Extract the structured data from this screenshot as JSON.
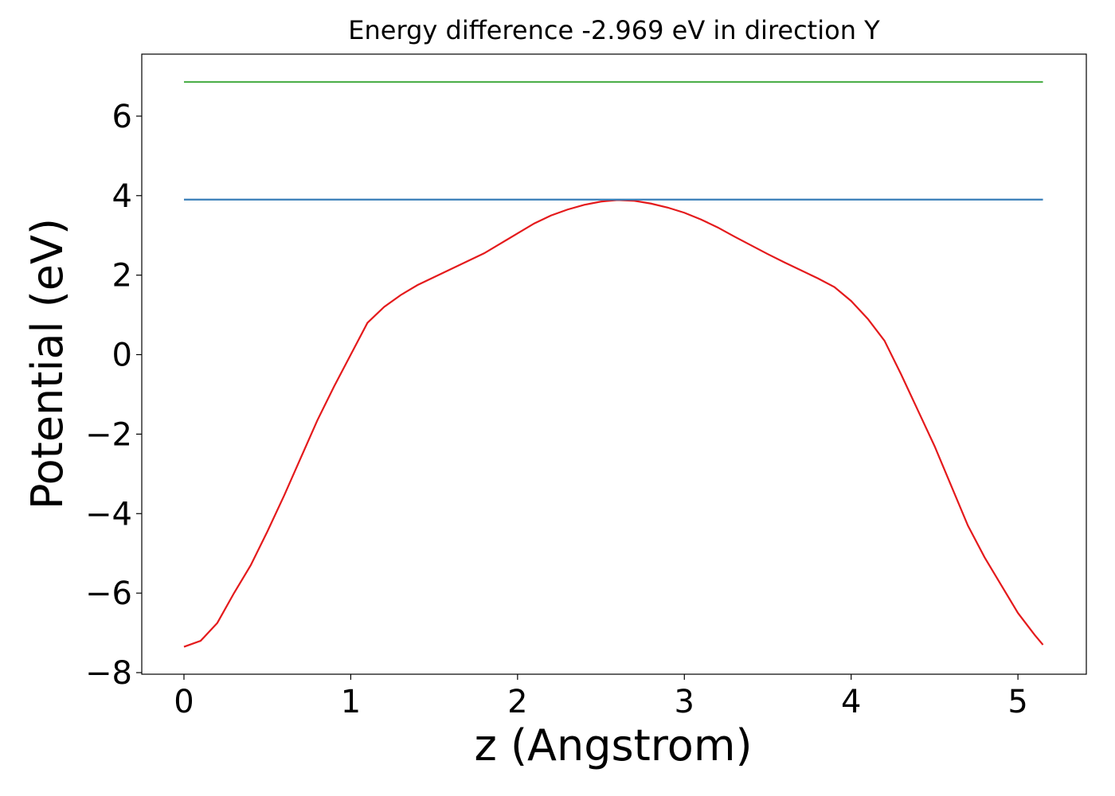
{
  "chart_data": {
    "type": "line",
    "title": "Energy difference -2.969 eV in direction Y",
    "x_label": "z (Angstrom)",
    "y_label": "Potential (eV)",
    "xlim": [
      -0.253,
      5.41
    ],
    "ylim": [
      -8.04,
      7.56
    ],
    "xticks": [
      0,
      1,
      2,
      3,
      4,
      5
    ],
    "yticks": [
      {
        "value": -8,
        "label": "−8"
      },
      {
        "value": -6,
        "label": "−6"
      },
      {
        "value": -4,
        "label": "−4"
      },
      {
        "value": -2,
        "label": "−2"
      },
      0,
      2,
      4,
      6
    ],
    "x": [
      0,
      0.1,
      0.2,
      0.3,
      0.4,
      0.5,
      0.6,
      0.7,
      0.8,
      0.9,
      1.0,
      1.1,
      1.2,
      1.3,
      1.4,
      1.5,
      1.6,
      1.7,
      1.8,
      1.9,
      2.0,
      2.1,
      2.2,
      2.3,
      2.4,
      2.5,
      2.6,
      2.7,
      2.8,
      2.9,
      3.0,
      3.1,
      3.2,
      3.3,
      3.4,
      3.5,
      3.6,
      3.7,
      3.8,
      3.9,
      4.0,
      4.1,
      4.2,
      4.3,
      4.4,
      4.5,
      4.6,
      4.7,
      4.8,
      4.9,
      5.0,
      5.1,
      5.15
    ],
    "series": [
      {
        "color": "#e41a1c",
        "values": [
          -7.35,
          -7.2,
          -6.75,
          -6.0,
          -5.3,
          -4.45,
          -3.55,
          -2.6,
          -1.65,
          -0.8,
          0.0,
          0.8,
          1.2,
          1.5,
          1.75,
          1.95,
          2.15,
          2.35,
          2.55,
          2.8,
          3.05,
          3.3,
          3.5,
          3.65,
          3.77,
          3.85,
          3.89,
          3.87,
          3.8,
          3.7,
          3.57,
          3.4,
          3.2,
          2.97,
          2.75,
          2.53,
          2.32,
          2.12,
          1.92,
          1.7,
          1.35,
          0.9,
          0.35,
          -0.5,
          -1.4,
          -2.3,
          -3.3,
          -4.3,
          -5.1,
          -5.8,
          -6.5,
          -7.05,
          -7.3
        ]
      },
      {
        "color": "#377eb8",
        "values": [
          3.9,
          3.9,
          3.9,
          3.9,
          3.9,
          3.9,
          3.9,
          3.9,
          3.9,
          3.9,
          3.9,
          3.9,
          3.9,
          3.9,
          3.9,
          3.9,
          3.9,
          3.9,
          3.9,
          3.9,
          3.9,
          3.9,
          3.9,
          3.9,
          3.9,
          3.9,
          3.9,
          3.9,
          3.9,
          3.9,
          3.9,
          3.9,
          3.9,
          3.9,
          3.9,
          3.9,
          3.9,
          3.9,
          3.9,
          3.9,
          3.9,
          3.9,
          3.9,
          3.9,
          3.9,
          3.9,
          3.9,
          3.9,
          3.9,
          3.9,
          3.9,
          3.9,
          3.9
        ]
      },
      {
        "color": "#4daf4a",
        "values": [
          6.86,
          6.86,
          6.86,
          6.86,
          6.86,
          6.86,
          6.86,
          6.86,
          6.86,
          6.86,
          6.86,
          6.86,
          6.86,
          6.86,
          6.86,
          6.86,
          6.86,
          6.86,
          6.86,
          6.86,
          6.86,
          6.86,
          6.86,
          6.86,
          6.86,
          6.86,
          6.86,
          6.86,
          6.86,
          6.86,
          6.86,
          6.86,
          6.86,
          6.86,
          6.86,
          6.86,
          6.86,
          6.86,
          6.86,
          6.86,
          6.86,
          6.86,
          6.86,
          6.86,
          6.86,
          6.86,
          6.86,
          6.86,
          6.86,
          6.86,
          6.86,
          6.86,
          6.86
        ]
      }
    ]
  }
}
